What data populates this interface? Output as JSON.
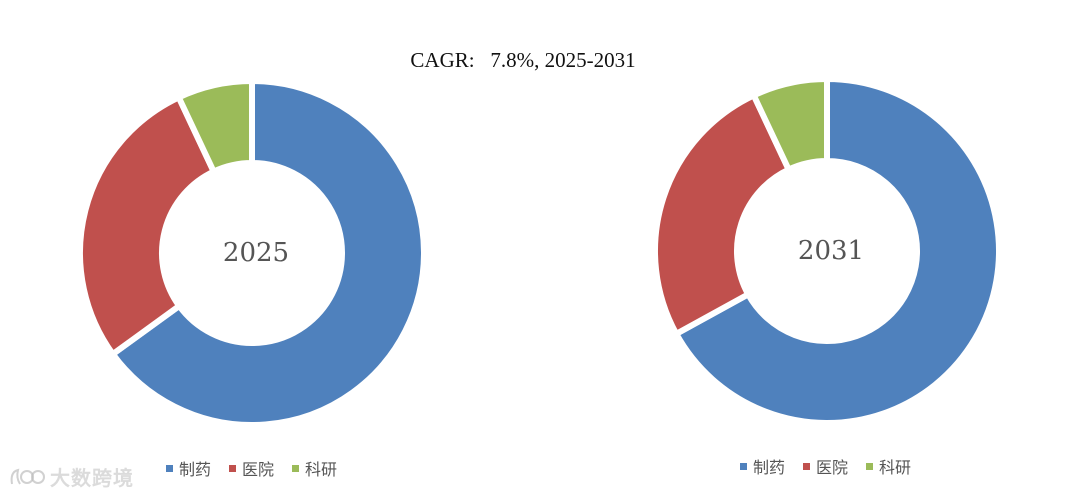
{
  "title": "CAGR:   7.8%, 2025-2031",
  "watermark": "大数跨境",
  "chart_data": [
    {
      "type": "pie",
      "center_label": "2025",
      "categories": [
        "制药",
        "医院",
        "科研"
      ],
      "values": [
        65,
        28,
        7
      ],
      "colors": [
        "#4F81BD",
        "#C0504D",
        "#9BBB59"
      ],
      "legend_position": "bottom"
    },
    {
      "type": "pie",
      "center_label": "2031",
      "categories": [
        "制药",
        "医院",
        "科研"
      ],
      "values": [
        67,
        26,
        7
      ],
      "colors": [
        "#4F81BD",
        "#C0504D",
        "#9BBB59"
      ],
      "legend_position": "bottom"
    }
  ]
}
